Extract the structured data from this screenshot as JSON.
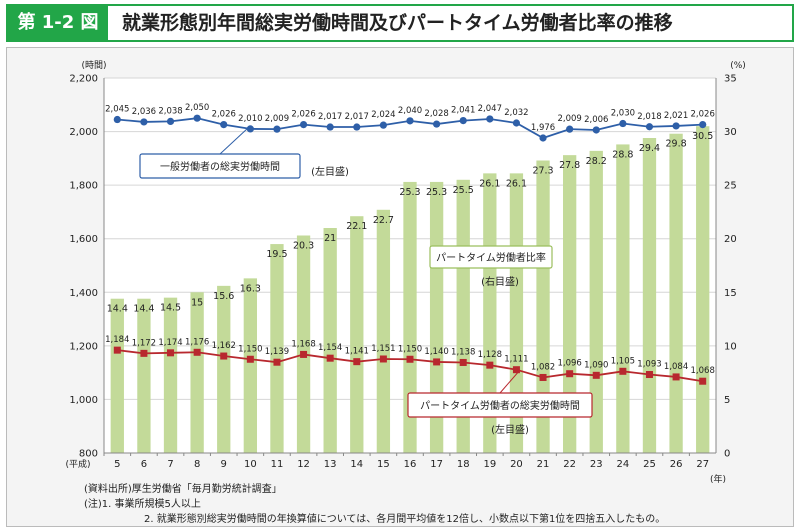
{
  "header": {
    "fig_label": "第 1-2 図",
    "title": "就業形態別年間総実労働時間及びパートタイム労働者比率の推移"
  },
  "colors": {
    "accent": "#22a648",
    "bar": "#c3da99",
    "general_line": "#2e5fa8",
    "part_line": "#b8282e"
  },
  "chart_data": {
    "type": "bar+line",
    "categories": [
      "5",
      "6",
      "7",
      "8",
      "9",
      "10",
      "11",
      "12",
      "13",
      "14",
      "15",
      "16",
      "17",
      "18",
      "19",
      "20",
      "21",
      "22",
      "23",
      "24",
      "25",
      "26",
      "27"
    ],
    "x_prefix": "(平成)",
    "x_suffix": "(年)",
    "left_axis": {
      "unit": "(時間)",
      "range": [
        800,
        2200
      ],
      "ticks": [
        "800",
        "1,000",
        "1,200",
        "1,400",
        "1,600",
        "1,800",
        "2,000",
        "2,200"
      ]
    },
    "right_axis": {
      "unit": "(%)",
      "range": [
        0,
        35
      ],
      "ticks": [
        "0",
        "5",
        "10",
        "15",
        "20",
        "25",
        "30",
        "35"
      ]
    },
    "series": [
      {
        "name": "パートタイム労働者比率",
        "name_note": "(右目盛)",
        "kind": "bar",
        "axis": "right",
        "values": [
          14.4,
          14.4,
          14.5,
          15.0,
          15.6,
          16.3,
          19.5,
          20.3,
          21.0,
          22.1,
          22.7,
          25.3,
          25.3,
          25.5,
          26.1,
          26.1,
          27.3,
          27.8,
          28.2,
          28.8,
          29.4,
          29.8,
          30.5
        ],
        "labels": [
          "14.4",
          "14.4",
          "14.5",
          "15",
          "15.6",
          "16.3",
          "19.5",
          "20.3",
          "21",
          "22.1",
          "22.7",
          "25.3",
          "25.3",
          "25.5",
          "26.1",
          "26.1",
          "27.3",
          "27.8",
          "28.2",
          "28.8",
          "29.4",
          "29.8",
          "30.5"
        ]
      },
      {
        "name": "一般労働者の総実労働時間",
        "name_note": "(左目盛)",
        "kind": "line",
        "axis": "left",
        "values": [
          2045,
          2036,
          2038,
          2050,
          2026,
          2010,
          2009,
          2026,
          2017,
          2017,
          2024,
          2040,
          2028,
          2041,
          2047,
          2032,
          1976,
          2009,
          2006,
          2030,
          2018,
          2021,
          2026
        ]
      },
      {
        "name": "パートタイム労働者の総実労働時間",
        "name_note": "(左目盛)",
        "kind": "line",
        "axis": "left",
        "values": [
          1184,
          1172,
          1174,
          1176,
          1162,
          1150,
          1139,
          1168,
          1154,
          1141,
          1151,
          1150,
          1140,
          1138,
          1128,
          1111,
          1082,
          1096,
          1090,
          1105,
          1093,
          1084,
          1068
        ]
      }
    ]
  },
  "notes": {
    "source": "(資料出所)厚生労働省「毎月勤労統計調査」",
    "note1": "(注)1. 事業所規模5人以上",
    "note2": "2. 就業形態別総実労働時間の年換算値については、各月間平均値を12倍し、小数点以下第1位を四捨五入したもの。"
  }
}
